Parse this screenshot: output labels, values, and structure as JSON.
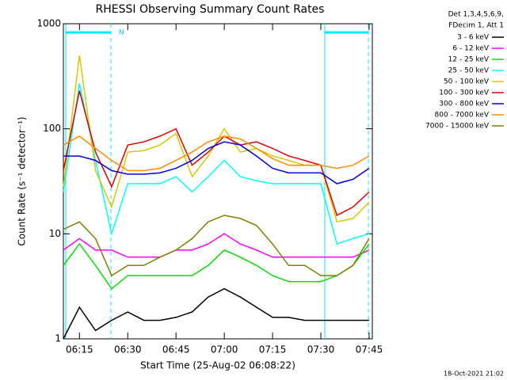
{
  "chart_data": {
    "type": "line",
    "title": "RHESSI Observing Summary Count Rates",
    "xlabel": "Start Time (25-Aug-02 06:08:22)",
    "ylabel": "Count Rate (s⁻¹ detector⁻¹)",
    "legend_header": [
      "Det 1,3,4,5,6,9,",
      "FDecim 1, Att 1"
    ],
    "annotation": "N",
    "timestamp": "18-Oct-2021 21:02",
    "log_y": true,
    "legend": "right",
    "x": [
      370,
      375,
      380,
      385,
      390,
      395,
      400,
      405,
      410,
      415,
      420,
      425,
      430,
      435,
      440,
      445,
      450,
      455,
      460,
      465
    ],
    "xlim": [
      370,
      466
    ],
    "xticks": [
      {
        "value": 375,
        "label": "06:15"
      },
      {
        "value": 390,
        "label": "06:30"
      },
      {
        "value": 405,
        "label": "06:45"
      },
      {
        "value": 420,
        "label": "07:00"
      },
      {
        "value": 435,
        "label": "07:15"
      },
      {
        "value": 450,
        "label": "07:30"
      },
      {
        "value": 465,
        "label": "07:45"
      }
    ],
    "ylim": [
      1,
      1000
    ],
    "yticks": [
      1,
      10,
      100,
      1000
    ],
    "series": [
      {
        "name": "3 - 6 keV",
        "color": "#000000",
        "values": [
          1,
          2,
          1.2,
          1.5,
          1.8,
          1.5,
          1.5,
          1.6,
          1.8,
          2.5,
          3,
          2.5,
          2,
          1.6,
          1.6,
          1.5,
          1.5,
          1.5,
          1.5,
          1.5
        ]
      },
      {
        "name": "6 - 12 keV",
        "color": "#ff00ff",
        "values": [
          7,
          9,
          7,
          7,
          6,
          6,
          6,
          7,
          7,
          8,
          10,
          8,
          7,
          6,
          6,
          6,
          6,
          6,
          6,
          7
        ]
      },
      {
        "name": "12 - 25 keV",
        "color": "#00e000",
        "values": [
          5,
          8,
          5,
          3,
          4,
          4,
          4,
          4,
          4,
          5,
          7,
          6,
          5,
          4,
          3.5,
          3.5,
          3.5,
          4,
          5,
          8
        ]
      },
      {
        "name": "25 - 50 keV",
        "color": "#00ffff",
        "values": [
          25,
          270,
          50,
          10,
          30,
          30,
          30,
          35,
          25,
          35,
          50,
          35,
          32,
          30,
          30,
          30,
          30,
          8,
          9,
          10
        ]
      },
      {
        "name": "50 - 100 keV",
        "color": "#d8c800",
        "values": [
          28,
          500,
          40,
          18,
          60,
          62,
          70,
          90,
          35,
          55,
          100,
          60,
          65,
          55,
          50,
          45,
          45,
          13,
          14,
          20
        ]
      },
      {
        "name": "100 - 300 keV",
        "color": "#e00000",
        "values": [
          40,
          230,
          60,
          28,
          70,
          75,
          85,
          100,
          45,
          60,
          85,
          70,
          75,
          65,
          55,
          50,
          45,
          15,
          18,
          25
        ]
      },
      {
        "name": "300 - 800 keV",
        "color": "#0000e0",
        "values": [
          55,
          55,
          50,
          40,
          37,
          37,
          38,
          42,
          50,
          65,
          75,
          70,
          55,
          42,
          38,
          38,
          38,
          30,
          33,
          42
        ]
      },
      {
        "name": "800 - 7000 keV",
        "color": "#ff8c00",
        "values": [
          70,
          85,
          65,
          50,
          40,
          40,
          42,
          50,
          60,
          75,
          85,
          80,
          65,
          52,
          45,
          45,
          45,
          42,
          45,
          55
        ]
      },
      {
        "name": "7000 - 15000 keV",
        "color": "#808000",
        "values": [
          11,
          13,
          9,
          4,
          5,
          5,
          6,
          7,
          9,
          13,
          15,
          14,
          12,
          8,
          5,
          5,
          4,
          4,
          5,
          9
        ]
      }
    ]
  }
}
